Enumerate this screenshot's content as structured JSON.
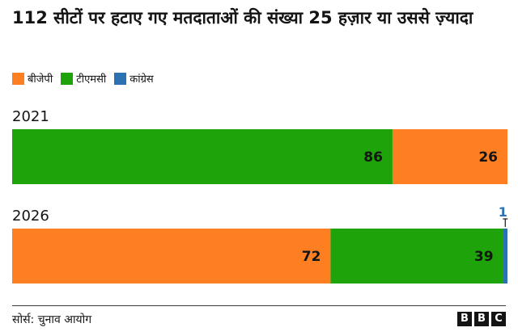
{
  "chart_data": {
    "type": "bar",
    "orientation": "horizontal-stacked",
    "title": "112 सीटों पर हटाए गए मतदाताओं की संख्या 25 हज़ार या उससे ज़्यादा",
    "categories": [
      "2021",
      "2026"
    ],
    "series": [
      {
        "name": "बीजेपी",
        "color": "#fd7f21",
        "values": [
          26,
          72
        ]
      },
      {
        "name": "टीएमसी",
        "color": "#1ea30a",
        "values": [
          86,
          39
        ]
      },
      {
        "name": "कांग्रेस",
        "color": "#2c72b3",
        "values": [
          0,
          1
        ]
      }
    ],
    "stack_order": [
      [
        "टीएमसी",
        "बीजेपी"
      ],
      [
        "बीजेपी",
        "टीएमसी",
        "कांग्रेस"
      ]
    ],
    "xlim": [
      0,
      112
    ],
    "legend_position": "top-left",
    "grid": false
  },
  "source": "सोर्स: चुनाव आयोग",
  "logo": [
    "B",
    "B",
    "C"
  ]
}
